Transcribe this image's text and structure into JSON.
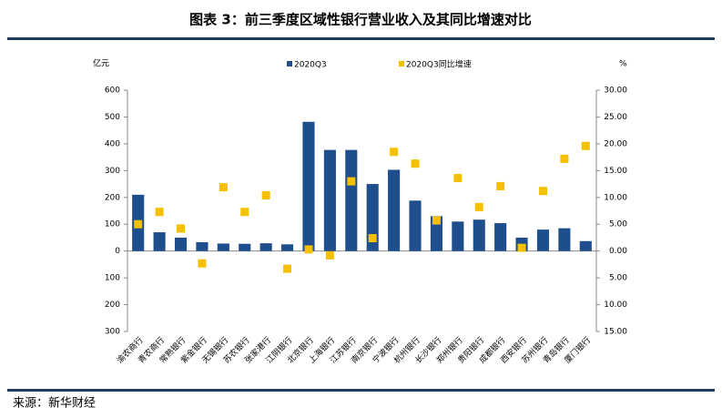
{
  "chart_data": {
    "type": "bar",
    "title": "图表 3：前三季度区域性银行营业收入及其同比增速对比",
    "source": "来源：新华财经",
    "ylabel": "亿元",
    "y2label": "%",
    "categories": [
      "渝农商行",
      "青农商行",
      "常熟银行",
      "紫金银行",
      "无锡银行",
      "苏农银行",
      "张家港行",
      "江阴银行",
      "北京银行",
      "上海银行",
      "江苏银行",
      "南京银行",
      "宁波银行",
      "杭州银行",
      "长沙银行",
      "郑州银行",
      "贵阳银行",
      "成都银行",
      "西安银行",
      "苏州银行",
      "青岛银行",
      "厦门银行"
    ],
    "series": [
      {
        "name": "2020Q3",
        "type": "bar",
        "color": "#1f4e8c",
        "values": [
          210,
          70,
          50,
          33,
          28,
          27,
          29,
          25,
          482,
          377,
          377,
          250,
          303,
          188,
          130,
          110,
          117,
          104,
          50,
          80,
          85,
          37
        ]
      },
      {
        "name": "2020Q3同比增速",
        "type": "scatter",
        "axis": "y2",
        "color": "#f5c000",
        "values": [
          5.0,
          7.3,
          4.2,
          -2.3,
          11.9,
          7.3,
          10.4,
          -3.3,
          0.3,
          -0.8,
          13.0,
          2.4,
          18.5,
          16.3,
          5.7,
          13.6,
          8.2,
          12.1,
          0.6,
          11.2,
          17.2,
          19.6
        ]
      }
    ],
    "ylim": [
      -300,
      600
    ],
    "yticks": [
      {
        "value": -300,
        "label": "300"
      },
      {
        "value": -200,
        "label": "200"
      },
      {
        "value": -100,
        "label": "100"
      },
      0,
      100,
      200,
      300,
      400,
      500,
      600
    ],
    "y2lim": [
      -15,
      30
    ],
    "y2ticks": [
      {
        "value": -15,
        "label": "15.00"
      },
      {
        "value": -10,
        "label": "10.00"
      },
      {
        "value": -5,
        "label": "5.00"
      },
      {
        "value": 0,
        "label": "0.00"
      },
      {
        "value": 5,
        "label": "5.00"
      },
      {
        "value": 10,
        "label": "10.00"
      },
      {
        "value": 15,
        "label": "15.00"
      },
      {
        "value": 20,
        "label": "20.00"
      },
      {
        "value": 25,
        "label": "25.00"
      },
      {
        "value": 30,
        "label": "30.00"
      }
    ],
    "negative_color": "#c00000",
    "legend": "top"
  }
}
